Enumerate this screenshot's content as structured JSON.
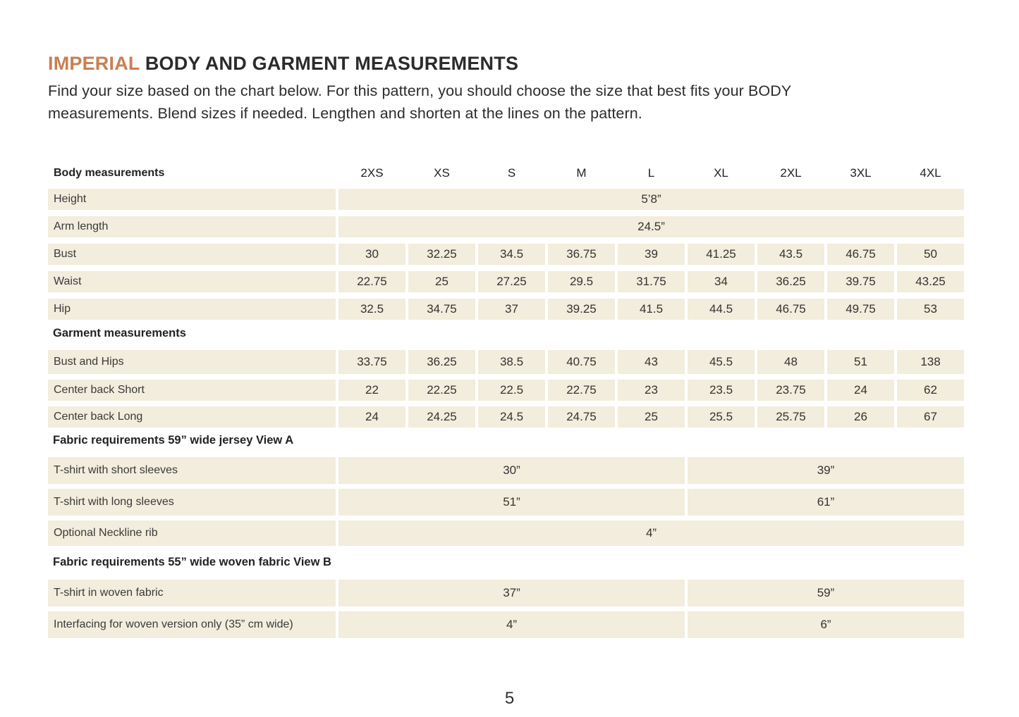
{
  "page": {
    "title_brand": "IMPERIAL",
    "title_rest": " BODY AND GARMENT MEASUREMENTS",
    "intro": "Find your size based on the chart below. For this pattern, you should choose the size that best fits your BODY measurements. Blend sizes if needed. Lengthen and shorten at the lines on the pattern.",
    "page_number": "5"
  },
  "colors": {
    "accent": "#C97F52",
    "cell_background": "#F2EDDC",
    "text": "#2E2E2E"
  },
  "table": {
    "header": {
      "label": "Body measurements",
      "sizes": [
        "2XS",
        "XS",
        "S",
        "M",
        "L",
        "XL",
        "2XL",
        "3XL",
        "4XL"
      ]
    },
    "rows": [
      {
        "type": "span",
        "label": "Height",
        "value": "5’8”"
      },
      {
        "type": "span",
        "label": "Arm length",
        "value": "24.5”"
      },
      {
        "type": "cells",
        "label": "Bust",
        "values": [
          "30",
          "32.25",
          "34.5",
          "36.75",
          "39",
          "41.25",
          "43.5",
          "46.75",
          "50"
        ]
      },
      {
        "type": "cells",
        "label": "Waist",
        "values": [
          "22.75",
          "25",
          "27.25",
          "29.5",
          "31.75",
          "34",
          "36.25",
          "39.75",
          "43.25"
        ]
      },
      {
        "type": "cells",
        "label": "Hip",
        "values": [
          "32.5",
          "34.75",
          "37",
          "39.25",
          "41.5",
          "44.5",
          "46.75",
          "49.75",
          "53"
        ]
      },
      {
        "type": "section",
        "label": "Garment measurements"
      },
      {
        "type": "cells",
        "label": "Bust and Hips",
        "values": [
          "33.75",
          "36.25",
          "38.5",
          "40.75",
          "43",
          "45.5",
          "48",
          "51",
          "138"
        ]
      },
      {
        "type": "cells",
        "label": "Center back Short",
        "values": [
          "22",
          "22.25",
          "22.5",
          "22.75",
          "23",
          "23.5",
          "23.75",
          "24",
          "62"
        ]
      },
      {
        "type": "cells",
        "label": "Center back Long",
        "values": [
          "24",
          "24.25",
          "24.5",
          "24.75",
          "25",
          "25.5",
          "25.75",
          "26",
          "67"
        ]
      },
      {
        "type": "section",
        "label": "Fabric requirements 59” wide jersey View A"
      },
      {
        "type": "split",
        "label": "T-shirt with short sleeves",
        "left": "30”",
        "right": "39”"
      },
      {
        "type": "split",
        "label": "T-shirt with long sleeves",
        "left": "51”",
        "right": "61”"
      },
      {
        "type": "span",
        "label": "Optional Neckline rib",
        "value": "4”"
      },
      {
        "type": "section",
        "label": "Fabric requirements 55”  wide woven fabric View B"
      },
      {
        "type": "split",
        "label": "T-shirt in woven fabric",
        "left": "37”",
        "right": "59”"
      },
      {
        "type": "split",
        "label": "Interfacing for woven version only (35” cm wide)",
        "left": "4”",
        "right": "6”"
      }
    ]
  }
}
